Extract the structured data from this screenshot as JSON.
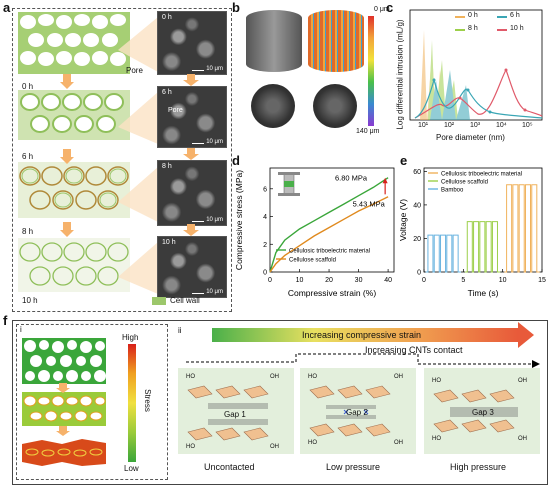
{
  "panel_labels": {
    "a": "a",
    "b": "b",
    "c": "c",
    "d": "d",
    "e": "e",
    "f": "f"
  },
  "panel_a": {
    "times": [
      "0 h",
      "6 h",
      "8 h",
      "10 h"
    ],
    "sem_tags": [
      "0 h",
      "6 h",
      "8 h",
      "10 h"
    ],
    "scale": "10 μm",
    "pore_labels": [
      "Pore",
      "Pore"
    ],
    "legend": "Cell wall",
    "colors": {
      "wall": "#9cc76b",
      "arrow": "#f6b26b"
    }
  },
  "panel_b": {
    "scale_top": "0 μm",
    "scale_bottom": "140 μm"
  },
  "panel_c": {
    "xlabel": "Pore  diameter (nm)",
    "ylabel": "Log differential intrusion (mL/g)",
    "x_ticks": [
      "10¹",
      "10²",
      "10³",
      "10⁴",
      "10⁵"
    ],
    "legend": [
      {
        "name": "0 h",
        "color": "#f0b25c"
      },
      {
        "name": "6 h",
        "color": "#3aa6b5"
      },
      {
        "name": "8 h",
        "color": "#9ccf4a"
      },
      {
        "name": "10 h",
        "color": "#e05a6a"
      }
    ]
  },
  "chart_data": [
    {
      "type": "line",
      "xlabel": "Compressive strain (%)",
      "ylabel": "Compressive stress (MPa)",
      "x_ticks": [
        "0",
        "10",
        "20",
        "30",
        "40"
      ],
      "y_ticks": [
        "0",
        "2",
        "4",
        "6"
      ],
      "xlim": [
        0,
        42
      ],
      "ylim": [
        0,
        7.5
      ],
      "series": [
        {
          "name": "Cellulosic triboelectric material",
          "color": "#3aa63a",
          "x": [
            0,
            2,
            5,
            10,
            15,
            20,
            25,
            30,
            35,
            40
          ],
          "y": [
            0,
            1.4,
            2.3,
            3.1,
            3.7,
            4.3,
            4.9,
            5.5,
            6.1,
            6.8
          ]
        },
        {
          "name": "Cellulose scaffold",
          "color": "#e08a1e",
          "x": [
            0,
            2,
            5,
            10,
            15,
            20,
            25,
            30,
            35,
            40
          ],
          "y": [
            0,
            0.6,
            1.2,
            1.9,
            2.6,
            3.2,
            3.8,
            4.4,
            4.9,
            5.43
          ]
        }
      ],
      "annotations": [
        "6.80 MPa",
        "5.43 MPa"
      ]
    },
    {
      "type": "line",
      "xlabel": "Time (s)",
      "ylabel": "Voltage (V)",
      "x_ticks": [
        "0",
        "5",
        "10",
        "15"
      ],
      "y_ticks": [
        "0",
        "20",
        "40",
        "60"
      ],
      "xlim": [
        0,
        15
      ],
      "ylim": [
        0,
        62
      ],
      "series": [
        {
          "name": "Cellulosic triboelectric material",
          "color": "#f0b25c",
          "x_range": [
            10.5,
            14.5
          ],
          "amplitude": 52,
          "pulses": 5
        },
        {
          "name": "Cellulose scaffold",
          "color": "#9ccf4a",
          "x_range": [
            5.5,
            9.5
          ],
          "amplitude": 30,
          "pulses": 5
        },
        {
          "name": "Bamboo",
          "color": "#6ab4e0",
          "x_range": [
            0.5,
            4.5
          ],
          "amplitude": 22,
          "pulses": 5
        }
      ]
    }
  ],
  "panel_f": {
    "sub_i": "i",
    "sub_ii": "ii",
    "stress_high": "High",
    "stress_low": "Low",
    "stress_label": "Stress",
    "banner": "Increasing compressive strain",
    "cnt_label": "Increasing CNTs contact",
    "gaps": [
      "Gap 1",
      "Gap 2",
      "Gap 3"
    ],
    "states": [
      "Uncontacted",
      "Low pressure",
      "High pressure"
    ],
    "ho": "HO",
    "oh": "OH"
  }
}
